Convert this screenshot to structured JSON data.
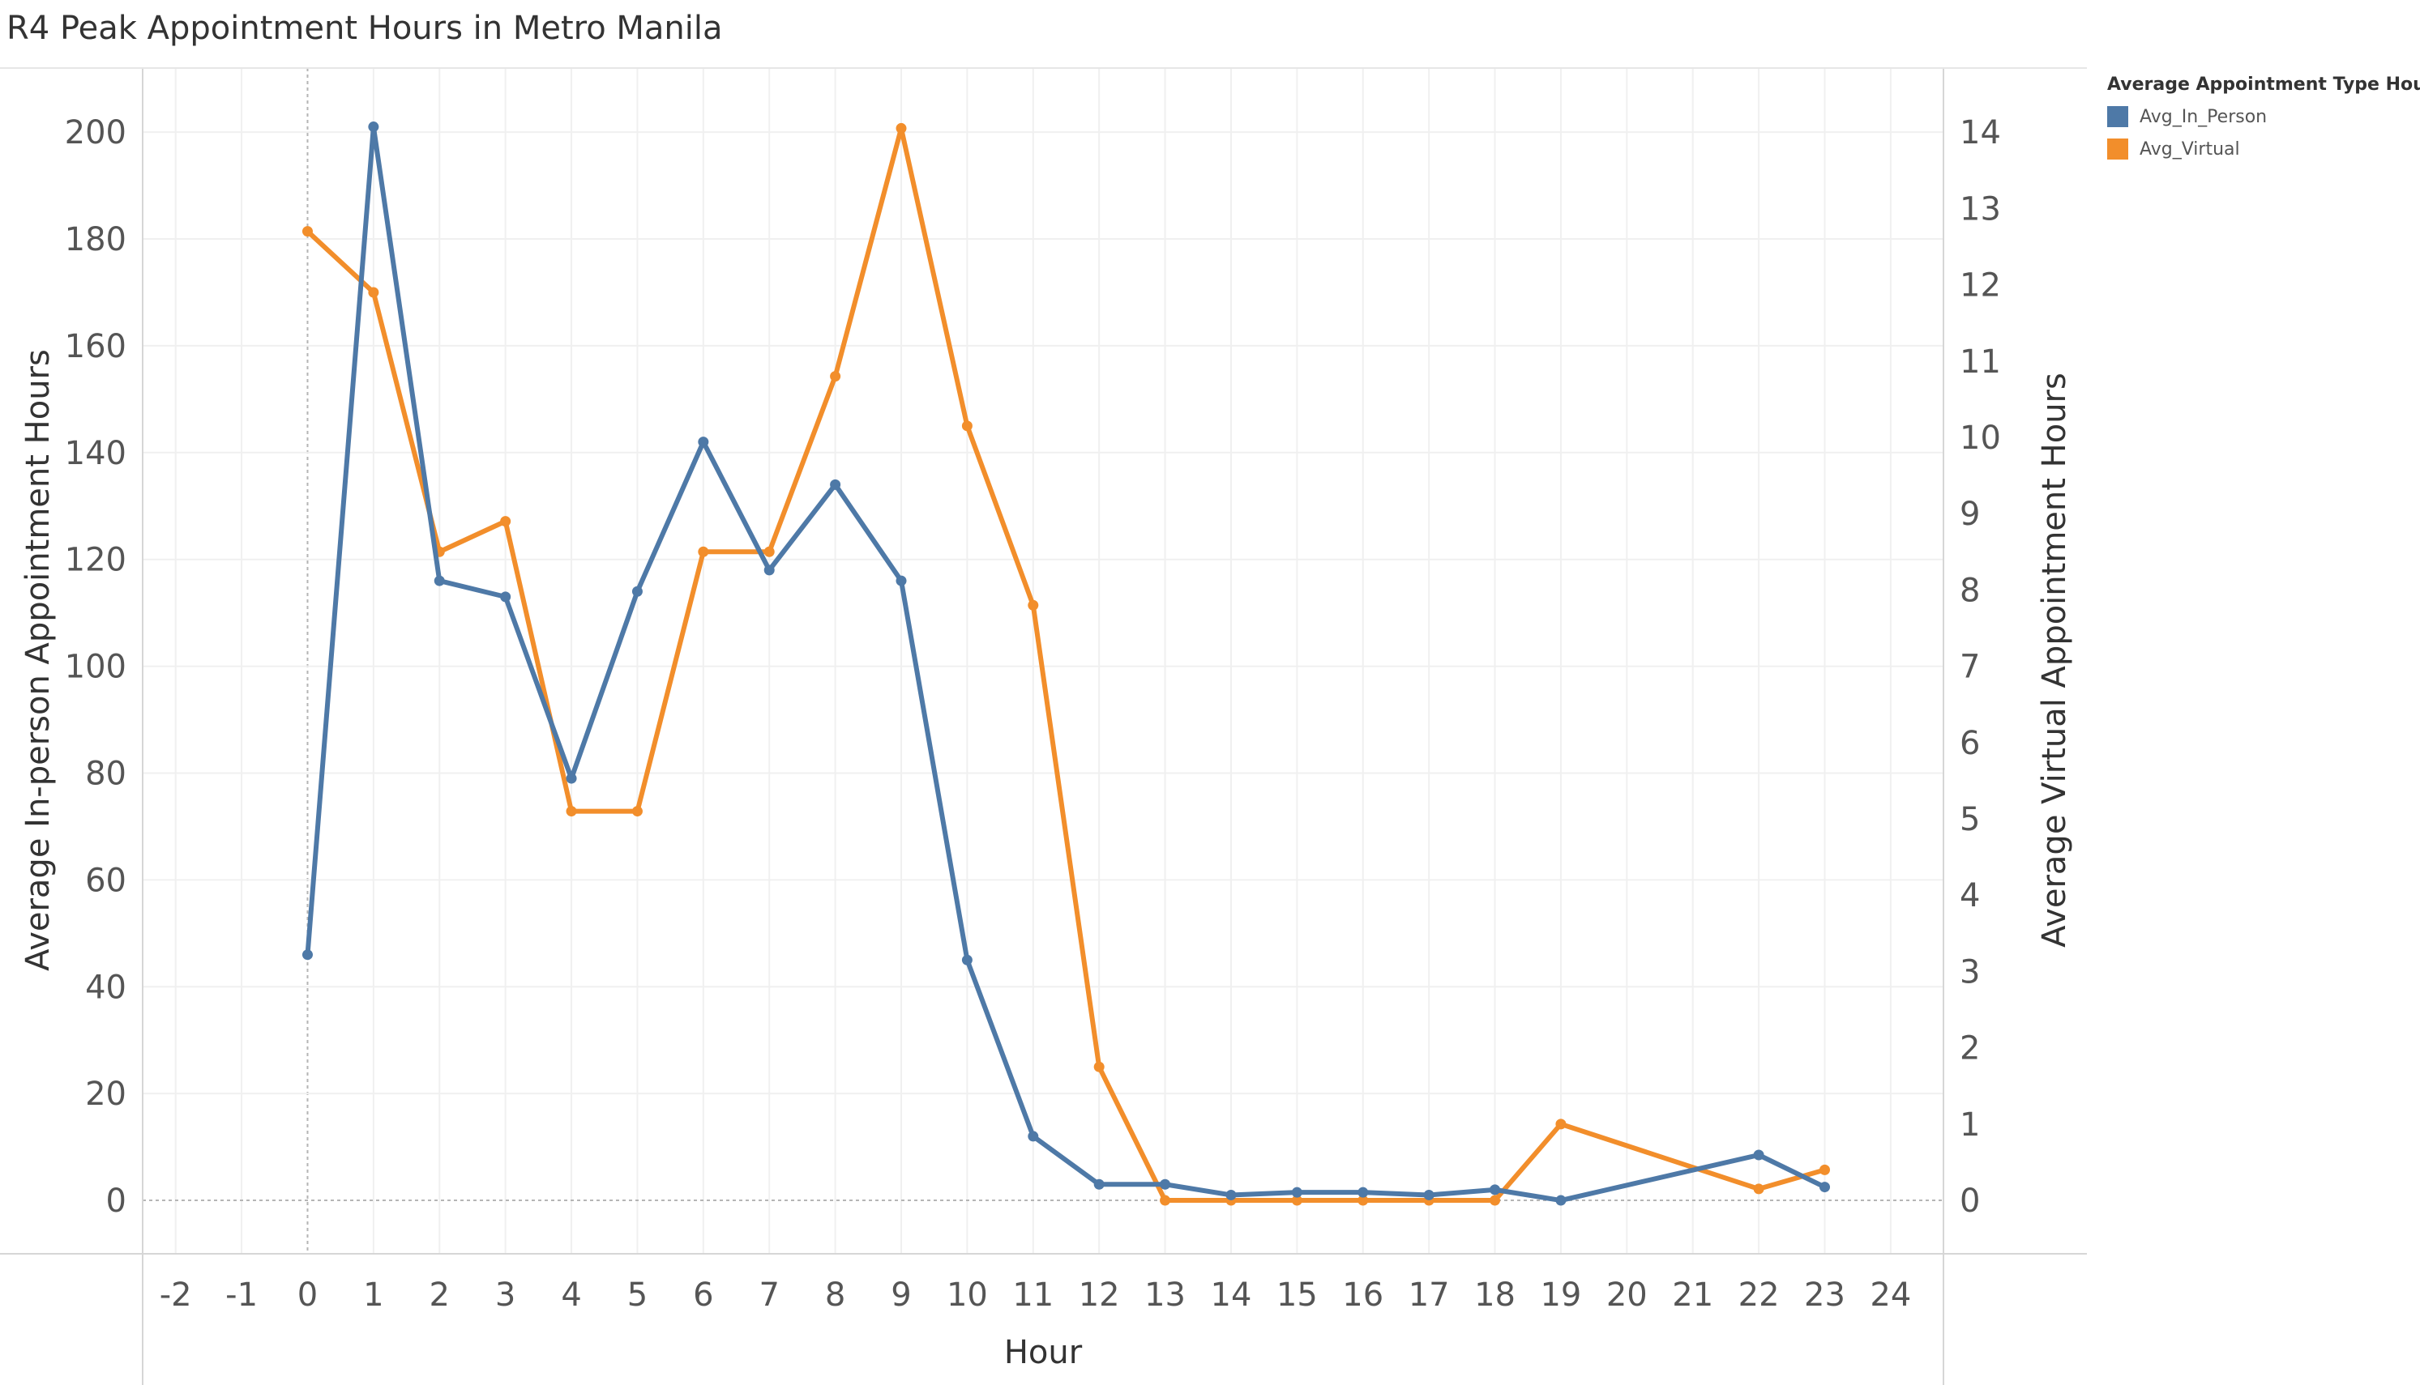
{
  "page": {
    "title": "R4 Peak Appointment Hours in Metro Manila"
  },
  "legend": {
    "title": "Average Appointment Type Hours",
    "items": [
      {
        "label": "Avg_In_Person",
        "color": "#4e79a7"
      },
      {
        "label": "Avg_Virtual",
        "color": "#f28e2b"
      }
    ]
  },
  "chart_data": {
    "type": "line",
    "title": "R4 Peak Appointment Hours in Metro Manila",
    "xlabel": "Hour",
    "ylabel_left": "Average In-person Appointment Hours",
    "ylabel_right": "Average Virtual Appointment Hours",
    "xlim": [
      -2.5,
      24.8
    ],
    "ylim_left": [
      -10,
      212
    ],
    "ylim_right": [
      -0.7,
      14.84
    ],
    "x_ticks": [
      -2,
      -1,
      0,
      1,
      2,
      3,
      4,
      5,
      6,
      7,
      8,
      9,
      10,
      11,
      12,
      13,
      14,
      15,
      16,
      17,
      18,
      19,
      20,
      21,
      22,
      23,
      24
    ],
    "y_ticks_left": [
      0,
      20,
      40,
      60,
      80,
      100,
      120,
      140,
      160,
      180,
      200
    ],
    "y_ticks_right": [
      0,
      1,
      2,
      3,
      4,
      5,
      6,
      7,
      8,
      9,
      10,
      11,
      12,
      13,
      14
    ],
    "series": [
      {
        "name": "Avg_In_Person",
        "axis": "left",
        "color": "#4e79a7",
        "x": [
          0,
          1,
          2,
          3,
          4,
          5,
          6,
          7,
          8,
          9,
          10,
          11,
          12,
          13,
          14,
          15,
          16,
          17,
          18,
          19,
          22,
          23
        ],
        "values": [
          46,
          201,
          116,
          113,
          79,
          114,
          142,
          118,
          134,
          116,
          45,
          12,
          3,
          3,
          1,
          1.5,
          1.5,
          1,
          2,
          0,
          8.5,
          2.5
        ]
      },
      {
        "name": "Avg_Virtual",
        "axis": "right",
        "color": "#f28e2b",
        "x": [
          0,
          1,
          2,
          3,
          4,
          5,
          6,
          7,
          8,
          9,
          10,
          11,
          12,
          13,
          14,
          15,
          16,
          17,
          18,
          19,
          22,
          23
        ],
        "values": [
          12.7,
          11.9,
          8.5,
          8.9,
          5.1,
          5.1,
          8.5,
          8.5,
          10.8,
          14.05,
          10.15,
          7.8,
          1.75,
          0,
          0,
          0,
          0,
          0,
          0,
          1.0,
          0.15,
          0.4
        ]
      }
    ]
  }
}
